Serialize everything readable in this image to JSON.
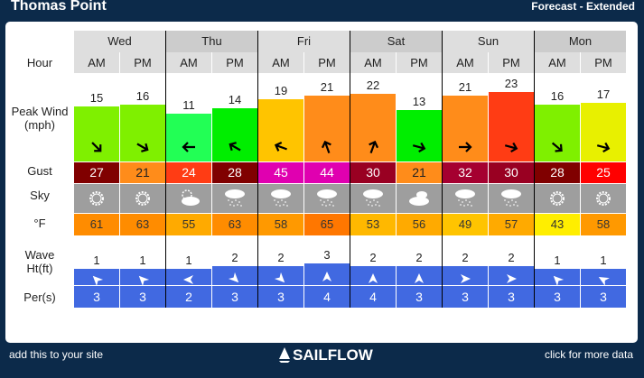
{
  "header": {
    "title": "Thomas Point",
    "subtitle": "Forecast - Extended"
  },
  "row_labels": {
    "hour": "Hour",
    "wind": "Peak Wind\n(mph)",
    "gust": "Gust",
    "sky": "Sky",
    "temp": "°F",
    "wave": "Wave\nHt(ft)",
    "period": "Per(s)"
  },
  "days": [
    "Wed",
    "Thu",
    "Fri",
    "Sat",
    "Sun",
    "Mon"
  ],
  "hours": [
    "AM",
    "PM"
  ],
  "columns": [
    {
      "wind": 15,
      "wind_dir_deg": 135,
      "wind_color": "#7ff000",
      "gust": 27,
      "gust_color": "#800000",
      "gust_text": "#ffffff",
      "sky": "sunny",
      "temp": 61,
      "temp_color": "#ff8c00",
      "wave": 1,
      "wave_dir_deg": 315,
      "period": 3
    },
    {
      "wind": 16,
      "wind_dir_deg": 120,
      "wind_color": "#7ff000",
      "gust": 21,
      "gust_color": "#ff8c1a",
      "gust_text": "#222222",
      "sky": "sunny",
      "temp": 63,
      "temp_color": "#ff8c00",
      "wave": 1,
      "wave_dir_deg": 315,
      "period": 3
    },
    {
      "wind": 11,
      "wind_dir_deg": 270,
      "wind_color": "#22ff55",
      "gust": 24,
      "gust_color": "#ff3c14",
      "gust_text": "#ffffff",
      "sky": "partly-cloudy",
      "temp": 55,
      "temp_color": "#ffaa00",
      "wave": 1,
      "wave_dir_deg": 270,
      "period": 2
    },
    {
      "wind": 14,
      "wind_dir_deg": 300,
      "wind_color": "#00ee00",
      "gust": 28,
      "gust_color": "#800000",
      "gust_text": "#ffffff",
      "sky": "rain",
      "temp": 63,
      "temp_color": "#ff8c00",
      "wave": 2,
      "wave_dir_deg": 135,
      "period": 3
    },
    {
      "wind": 19,
      "wind_dir_deg": 290,
      "wind_color": "#ffc400",
      "gust": 45,
      "gust_color": "#e000b0",
      "gust_text": "#ffffff",
      "sky": "rain",
      "temp": 58,
      "temp_color": "#ff9900",
      "wave": 2,
      "wave_dir_deg": 135,
      "period": 3
    },
    {
      "wind": 21,
      "wind_dir_deg": 340,
      "wind_color": "#ff8c1a",
      "gust": 44,
      "gust_color": "#e000b0",
      "gust_text": "#ffffff",
      "sky": "rain",
      "temp": 65,
      "temp_color": "#ff7700",
      "wave": 3,
      "wave_dir_deg": 0,
      "period": 4
    },
    {
      "wind": 22,
      "wind_dir_deg": 20,
      "wind_color": "#ff8c1a",
      "gust": 30,
      "gust_color": "#990022",
      "gust_text": "#ffffff",
      "sky": "rain",
      "temp": 53,
      "temp_color": "#ffb800",
      "wave": 2,
      "wave_dir_deg": 0,
      "period": 4
    },
    {
      "wind": 13,
      "wind_dir_deg": 105,
      "wind_color": "#00ee00",
      "gust": 21,
      "gust_color": "#ff8c1a",
      "gust_text": "#222222",
      "sky": "cloudy",
      "temp": 56,
      "temp_color": "#ffaa00",
      "wave": 2,
      "wave_dir_deg": 0,
      "period": 3
    },
    {
      "wind": 21,
      "wind_dir_deg": 90,
      "wind_color": "#ff8c1a",
      "gust": 32,
      "gust_color": "#a50030",
      "gust_text": "#ffffff",
      "sky": "rain",
      "temp": 49,
      "temp_color": "#ffc400",
      "wave": 2,
      "wave_dir_deg": 90,
      "period": 3
    },
    {
      "wind": 23,
      "wind_dir_deg": 105,
      "wind_color": "#ff3c14",
      "gust": 30,
      "gust_color": "#990022",
      "gust_text": "#ffffff",
      "sky": "rain",
      "temp": 57,
      "temp_color": "#ffaa00",
      "wave": 2,
      "wave_dir_deg": 90,
      "period": 3
    },
    {
      "wind": 16,
      "wind_dir_deg": 130,
      "wind_color": "#7ff000",
      "gust": 28,
      "gust_color": "#800000",
      "gust_text": "#ffffff",
      "sky": "sunny",
      "temp": 43,
      "temp_color": "#ffee00",
      "wave": 1,
      "wave_dir_deg": 315,
      "period": 3
    },
    {
      "wind": 17,
      "wind_dir_deg": 105,
      "wind_color": "#e8f000",
      "gust": 25,
      "gust_color": "#ff0000",
      "gust_text": "#ffffff",
      "sky": "sunny",
      "temp": 58,
      "temp_color": "#ff9900",
      "wave": 1,
      "wave_dir_deg": 300,
      "period": 3
    }
  ],
  "colors": {
    "sky_bg": "#9e9e9e",
    "wave_bg": "#4169e1",
    "background": "#0c2a4a"
  },
  "footer": {
    "add_link": "add this to your site",
    "logo": "SAILFLOW",
    "more_link": "click for more data"
  }
}
